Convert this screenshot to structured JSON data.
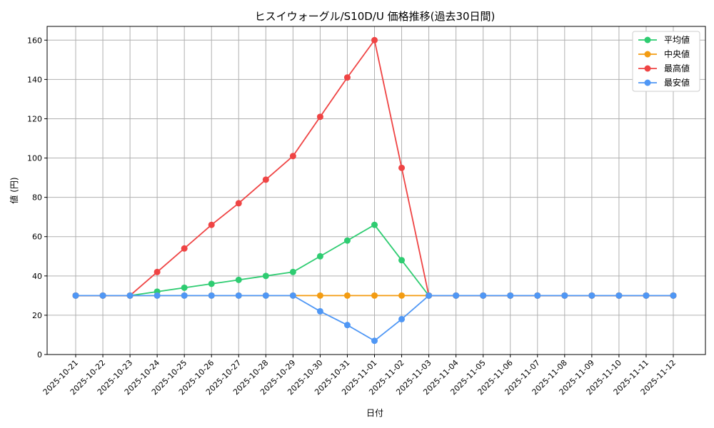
{
  "chart_data": {
    "type": "line",
    "title": "ヒスイウォーグル/S10D/U 価格推移(過去30日間)",
    "xlabel": "日付",
    "ylabel": "値 (円)",
    "categories": [
      "2025-10-21",
      "2025-10-22",
      "2025-10-23",
      "2025-10-24",
      "2025-10-25",
      "2025-10-26",
      "2025-10-27",
      "2025-10-28",
      "2025-10-29",
      "2025-10-30",
      "2025-10-31",
      "2025-11-01",
      "2025-11-02",
      "2025-11-03",
      "2025-11-04",
      "2025-11-05",
      "2025-11-06",
      "2025-11-07",
      "2025-11-08",
      "2025-11-09",
      "2025-11-10",
      "2025-11-11",
      "2025-11-12"
    ],
    "ylim": [
      0,
      167
    ],
    "yticks": [
      0,
      20,
      40,
      60,
      80,
      100,
      120,
      140,
      160
    ],
    "grid": true,
    "legend_position": "top-right",
    "series": [
      {
        "name": "平均値",
        "color": "#2ecc71",
        "values": [
          30,
          30,
          30,
          32,
          34,
          36,
          38,
          40,
          42,
          50,
          58,
          66,
          48,
          30,
          30,
          30,
          30,
          30,
          30,
          30,
          30,
          30,
          30
        ]
      },
      {
        "name": "中央値",
        "color": "#f39c12",
        "values": [
          30,
          30,
          30,
          30,
          30,
          30,
          30,
          30,
          30,
          30,
          30,
          30,
          30,
          30,
          30,
          30,
          30,
          30,
          30,
          30,
          30,
          30,
          30
        ]
      },
      {
        "name": "最高値",
        "color": "#ef4444",
        "values": [
          30,
          30,
          30,
          42,
          54,
          66,
          77,
          89,
          101,
          121,
          141,
          160,
          95,
          30,
          30,
          30,
          30,
          30,
          30,
          30,
          30,
          30,
          30
        ]
      },
      {
        "name": "最安値",
        "color": "#4f97f5",
        "values": [
          30,
          30,
          30,
          30,
          30,
          30,
          30,
          30,
          30,
          22,
          15,
          7,
          18,
          30,
          30,
          30,
          30,
          30,
          30,
          30,
          30,
          30,
          30
        ]
      }
    ]
  }
}
